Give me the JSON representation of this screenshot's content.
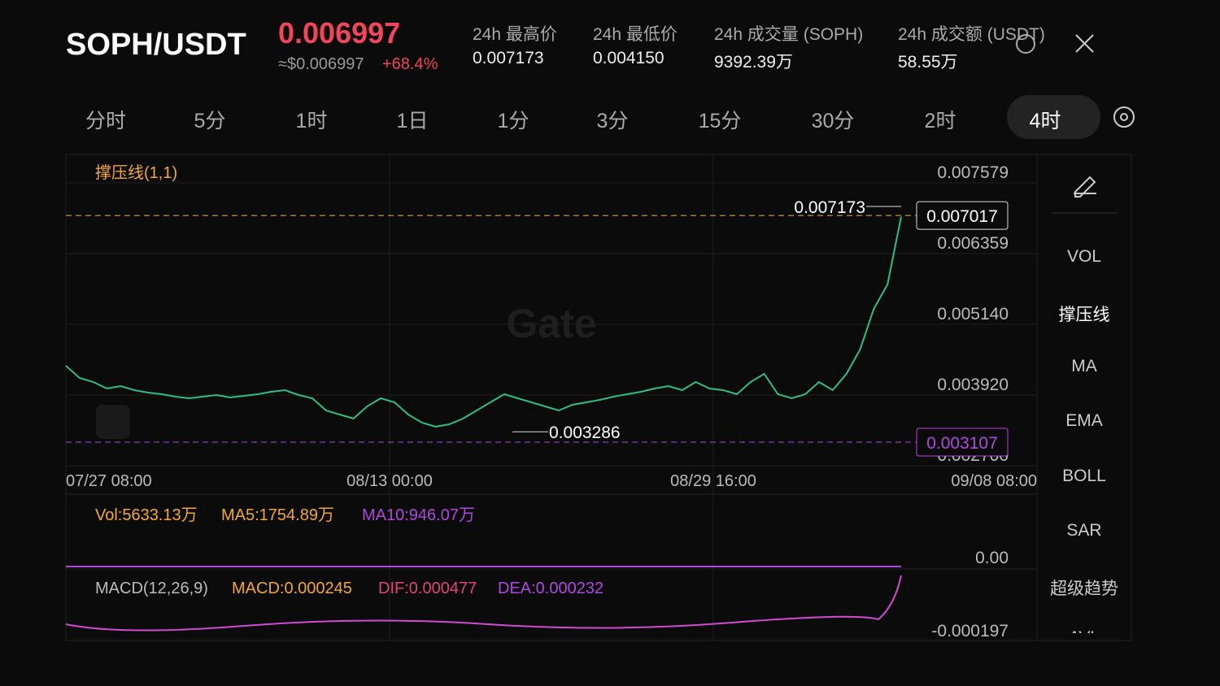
{
  "header": {
    "pair": "SOPH/USDT",
    "price": "0.006997",
    "usd_price": "≈$0.006997",
    "change": "+68.4%",
    "stats": [
      {
        "label": "24h 最高价",
        "value": "0.007173"
      },
      {
        "label": "24h 最低价",
        "value": "0.004150"
      },
      {
        "label": "24h 成交量 (SOPH)",
        "value": "9392.39万"
      },
      {
        "label": "24h 成交额 (USDT)",
        "value": "58.55万"
      }
    ]
  },
  "tabs": [
    "分时",
    "5分",
    "1时",
    "1日",
    "1分",
    "3分",
    "15分",
    "30分",
    "2时",
    "4时"
  ],
  "sidebar": [
    "VOL",
    "撑压线",
    "MA",
    "EMA",
    "BOLL",
    "SAR",
    "超级趋势",
    "AVL"
  ],
  "chart_data": {
    "type": "line",
    "indicator": "撑压线(1,1)",
    "watermark": "Gate",
    "color": "#2ebd85",
    "x_labels": [
      "07/27 08:00",
      "08/13 00:00",
      "08/29 16:00",
      "09/08 08:00"
    ],
    "values": [
      0.004424,
      0.004214,
      0.004144,
      0.004032,
      0.004074,
      0.004004,
      0.003962,
      0.003934,
      0.003892,
      0.003864,
      0.003892,
      0.00392,
      0.003878,
      0.003906,
      0.003934,
      0.003976,
      0.004004,
      0.00392,
      0.003864,
      0.003653,
      0.003583,
      0.003513,
      0.003723,
      0.003864,
      0.003794,
      0.003583,
      0.003443,
      0.003373,
      0.003415,
      0.003513,
      0.003653,
      0.003794,
      0.003934,
      0.003864,
      0.003794,
      0.003723,
      0.003653,
      0.003752,
      0.003794,
      0.003836,
      0.003892,
      0.003934,
      0.003976,
      0.004032,
      0.004074,
      0.004004,
      0.004144,
      0.004032,
      0.004004,
      0.003934,
      0.004144,
      0.004284,
      0.003934,
      0.003864,
      0.003934,
      0.004144,
      0.004004,
      0.004284,
      0.004705,
      0.005406,
      0.005826,
      0.006997
    ],
    "ylim": [
      0.0027,
      0.00807
    ],
    "yticks": [
      0.007579,
      0.006359,
      {
        "value": 0.00514,
        "label": "0.005140"
      },
      {
        "value": 0.00392,
        "label": "0.003920"
      },
      {
        "value": 0.0027,
        "label": "0.002700"
      }
    ],
    "levels": [
      {
        "value": 0.007017,
        "color": "#e8b33a"
      },
      {
        "value": 0.003107,
        "color": "#b047e0"
      }
    ],
    "high": 0.007173,
    "low": 0.003286,
    "volume": {
      "legend": [
        "Vol:5633.13万",
        "MA5:1754.89万",
        "MA10:946.07万"
      ],
      "tick": "0.00"
    },
    "macd": {
      "legend": [
        "MACD(12,26,9)",
        "MACD:0.000245",
        "DIF:0.000477",
        "DEA:0.000232"
      ],
      "tick": "-0.000197"
    }
  }
}
